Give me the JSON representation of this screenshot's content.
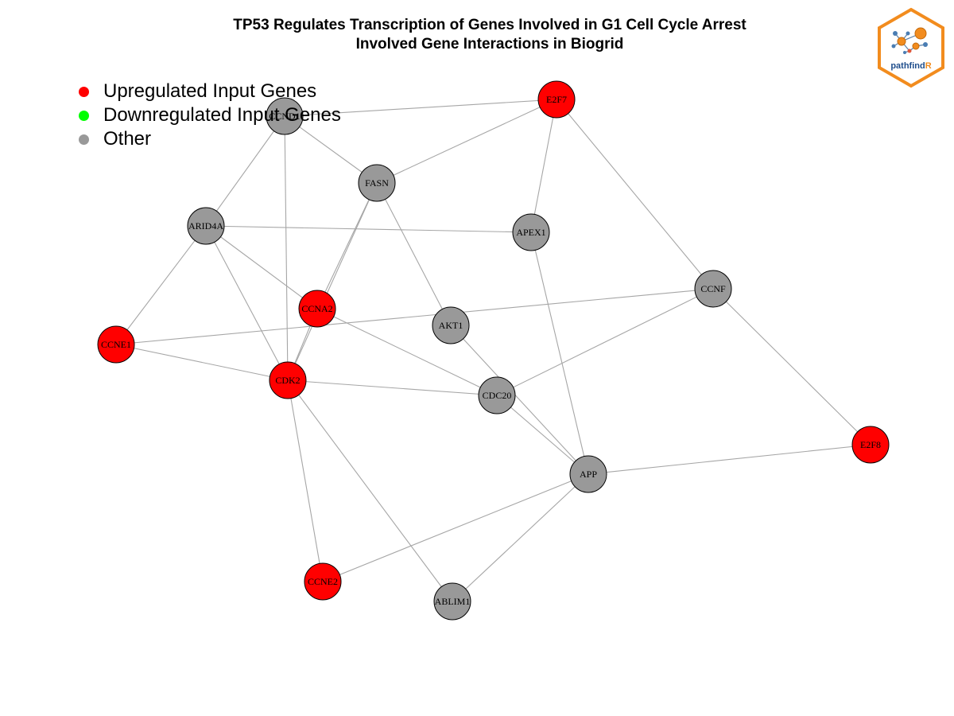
{
  "title": {
    "line1": "TP53 Regulates Transcription of Genes Involved in G1 Cell Cycle Arrest",
    "line2": "Involved Gene Interactions in Biogrid"
  },
  "logo": {
    "text_main": "pathfind",
    "text_accent": "R",
    "border_color": "#F28C1E",
    "text_color": "#1F4E8C"
  },
  "legend": {
    "items": [
      {
        "label": "Upregulated Input Genes",
        "color": "#FF0000"
      },
      {
        "label": "Downregulated Input Genes",
        "color": "#00FF00"
      },
      {
        "label": "Other",
        "color": "#999999"
      }
    ]
  },
  "colors": {
    "up": "#FF0000",
    "other": "#999999",
    "edge": "#A6A6A6"
  },
  "network": {
    "nodes": [
      {
        "id": "CCND1",
        "label": "CCND1",
        "group": "other"
      },
      {
        "id": "E2F7",
        "label": "E2F7",
        "group": "up"
      },
      {
        "id": "FASN",
        "label": "FASN",
        "group": "other"
      },
      {
        "id": "ARID4A",
        "label": "ARID4A",
        "group": "other"
      },
      {
        "id": "APEX1",
        "label": "APEX1",
        "group": "other"
      },
      {
        "id": "CCNF",
        "label": "CCNF",
        "group": "other"
      },
      {
        "id": "CCNA2",
        "label": "CCNA2",
        "group": "up"
      },
      {
        "id": "AKT1",
        "label": "AKT1",
        "group": "other"
      },
      {
        "id": "CCNE1",
        "label": "CCNE1",
        "group": "up"
      },
      {
        "id": "CDK2",
        "label": "CDK2",
        "group": "up"
      },
      {
        "id": "CDC20",
        "label": "CDC20",
        "group": "other"
      },
      {
        "id": "E2F8",
        "label": "E2F8",
        "group": "up"
      },
      {
        "id": "APP",
        "label": "APP",
        "group": "other"
      },
      {
        "id": "CCNE2",
        "label": "CCNE2",
        "group": "up"
      },
      {
        "id": "ABLIM1",
        "label": "ABLIM1",
        "group": "other"
      }
    ],
    "edges": [
      [
        "CCND1",
        "E2F7"
      ],
      [
        "CCND1",
        "FASN"
      ],
      [
        "CCND1",
        "ARID4A"
      ],
      [
        "CCND1",
        "CDK2"
      ],
      [
        "E2F7",
        "FASN"
      ],
      [
        "E2F7",
        "APEX1"
      ],
      [
        "E2F7",
        "CCNF"
      ],
      [
        "FASN",
        "CCNA2"
      ],
      [
        "FASN",
        "CDK2"
      ],
      [
        "FASN",
        "AKT1"
      ],
      [
        "ARID4A",
        "APEX1"
      ],
      [
        "ARID4A",
        "CCNE1"
      ],
      [
        "ARID4A",
        "CCNA2"
      ],
      [
        "ARID4A",
        "CDK2"
      ],
      [
        "APEX1",
        "APP"
      ],
      [
        "CCNF",
        "CCNE1"
      ],
      [
        "CCNF",
        "CDC20"
      ],
      [
        "CCNF",
        "E2F8"
      ],
      [
        "CCNA2",
        "CDK2"
      ],
      [
        "CCNA2",
        "CDC20"
      ],
      [
        "AKT1",
        "APP"
      ],
      [
        "CCNE1",
        "CDK2"
      ],
      [
        "CDK2",
        "CDC20"
      ],
      [
        "CDK2",
        "CCNE2"
      ],
      [
        "CDK2",
        "ABLIM1"
      ],
      [
        "CDC20",
        "APP"
      ],
      [
        "E2F8",
        "APP"
      ],
      [
        "APP",
        "CCNE2"
      ],
      [
        "APP",
        "ABLIM1"
      ]
    ]
  }
}
